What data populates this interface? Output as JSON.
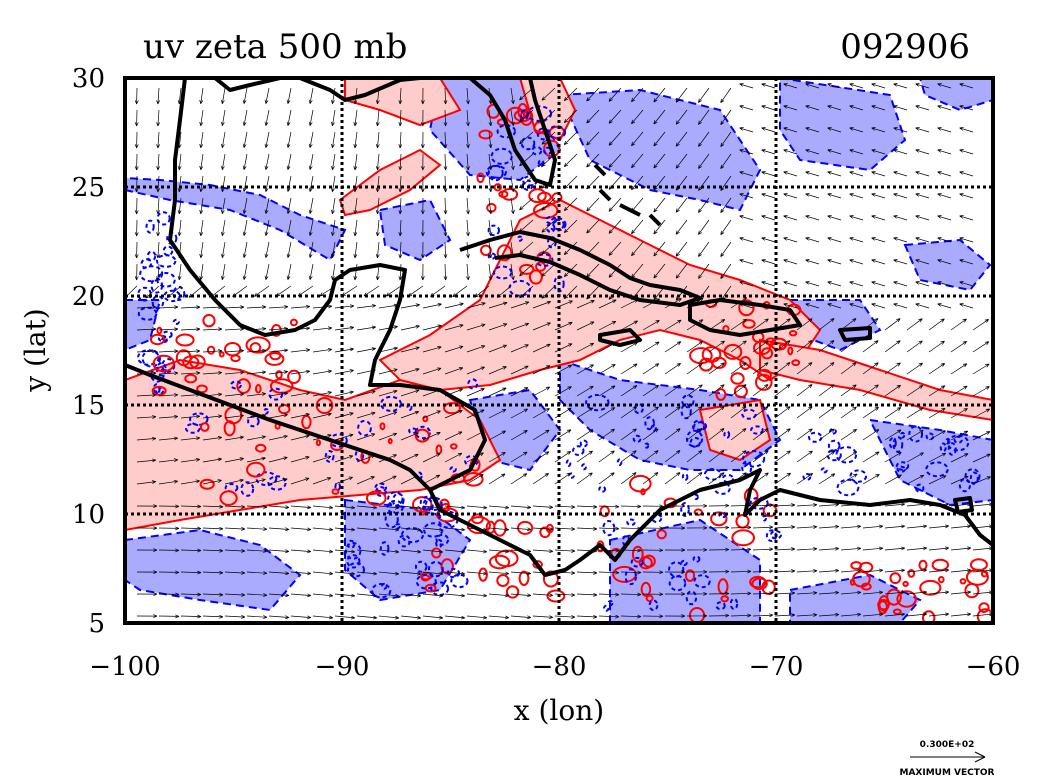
{
  "chart_data": {
    "type": "contour-vector map",
    "title": "uv zeta 500 mb",
    "date_label": "092906",
    "xlabel": "x (lon)",
    "ylabel": "y (lat)",
    "xlim": [
      -100,
      -60
    ],
    "ylim": [
      5,
      30
    ],
    "x_ticks": [
      -100,
      -90,
      -80,
      -70,
      -60
    ],
    "y_ticks": [
      5,
      10,
      15,
      20,
      25,
      30
    ],
    "grid": true,
    "contours": {
      "positive_color": "#ff0000",
      "positive_fill": "#ffcccc",
      "negative_color": "#0000ff",
      "negative_fill": "#aaaaff"
    },
    "reference_vector": {
      "value": "0.300E+02",
      "label": "MAXIMUM VECTOR"
    }
  }
}
